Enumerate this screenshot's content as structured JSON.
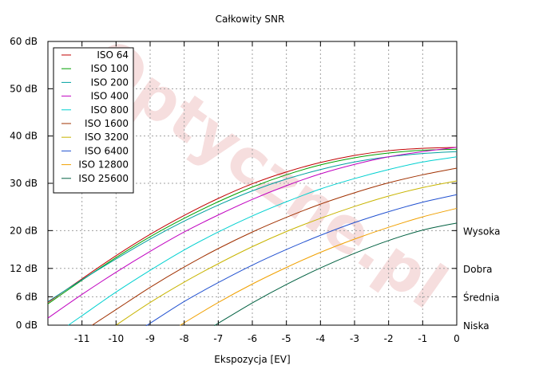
{
  "chart_data": {
    "type": "line",
    "title": "Całkowity SNR",
    "xlabel": "Ekspozycja [EV]",
    "ylabel": "",
    "xlim": [
      -12,
      0
    ],
    "ylim": [
      0,
      60
    ],
    "x_ticks": [
      -11,
      -10,
      -9,
      -8,
      -7,
      -6,
      -5,
      -4,
      -3,
      -2,
      -1,
      0
    ],
    "y_ticks": [
      {
        "value": 0,
        "label": "0 dB"
      },
      {
        "value": 6,
        "label": "6 dB"
      },
      {
        "value": 12,
        "label": "12 dB"
      },
      {
        "value": 20,
        "label": "20 dB"
      },
      {
        "value": 30,
        "label": "30 dB"
      },
      {
        "value": 40,
        "label": "40 dB"
      },
      {
        "value": 50,
        "label": "50 dB"
      },
      {
        "value": 60,
        "label": "60 dB"
      }
    ],
    "y2_ticks": [
      {
        "value": 20,
        "label": "Wysoka"
      },
      {
        "value": 12,
        "label": "Dobra"
      },
      {
        "value": 6,
        "label": "Średnia"
      },
      {
        "value": 0,
        "label": "Niska"
      }
    ],
    "grid": true,
    "legend_position": "top-left",
    "x": [
      -12,
      -11,
      -10,
      -9,
      -8,
      -7,
      -6,
      -5,
      -4,
      -3,
      -2,
      -1,
      0
    ],
    "series": [
      {
        "name": "ISO 64",
        "color": "#c00000",
        "values": [
          4.8,
          9.8,
          14.7,
          19.2,
          23.2,
          26.8,
          29.9,
          32.4,
          34.4,
          35.9,
          36.9,
          37.4,
          37.6
        ]
      },
      {
        "name": "ISO 100",
        "color": "#00a000",
        "values": [
          4.5,
          9.5,
          14.3,
          18.7,
          22.6,
          26.1,
          29.2,
          31.8,
          33.9,
          35.4,
          36.4,
          37.0,
          37.2
        ]
      },
      {
        "name": "ISO 200",
        "color": "#00a0a0",
        "values": [
          5.0,
          9.6,
          14.0,
          18.2,
          22.0,
          25.4,
          28.4,
          30.9,
          32.9,
          34.5,
          35.6,
          36.3,
          36.7
        ]
      },
      {
        "name": "ISO 400",
        "color": "#c000c0",
        "values": null,
        "values_pts": [
          [
            -12,
            1.5
          ],
          [
            -11,
            6.5
          ],
          [
            -10,
            11.2
          ],
          [
            -9,
            15.6
          ],
          [
            -8,
            19.7
          ],
          [
            -7,
            23.3
          ],
          [
            -6,
            26.6
          ],
          [
            -5,
            29.5
          ],
          [
            -4,
            32.0
          ],
          [
            -3,
            34.0
          ],
          [
            -2,
            35.6
          ],
          [
            -1,
            36.7
          ],
          [
            0,
            37.6
          ]
        ]
      },
      {
        "name": "ISO 800",
        "color": "#00d0d0",
        "values_pts": [
          [
            -11.4,
            0
          ],
          [
            -11,
            2.0
          ],
          [
            -10,
            7.0
          ],
          [
            -9,
            11.6
          ],
          [
            -8,
            15.9
          ],
          [
            -7,
            19.7
          ],
          [
            -6,
            23.1
          ],
          [
            -5,
            26.1
          ],
          [
            -4,
            28.8
          ],
          [
            -3,
            31.0
          ],
          [
            -2,
            32.9
          ],
          [
            -1,
            34.5
          ],
          [
            0,
            35.6
          ]
        ]
      },
      {
        "name": "ISO 1600",
        "color": "#a03000",
        "values_pts": [
          [
            -10.7,
            0
          ],
          [
            -10,
            3.3
          ],
          [
            -9,
            8.0
          ],
          [
            -8,
            12.3
          ],
          [
            -7,
            16.2
          ],
          [
            -6,
            19.7
          ],
          [
            -5,
            22.8
          ],
          [
            -4,
            25.6
          ],
          [
            -3,
            28.0
          ],
          [
            -2,
            30.1
          ],
          [
            -1,
            31.8
          ],
          [
            0,
            33.2
          ]
        ]
      },
      {
        "name": "ISO 3200",
        "color": "#c8b400",
        "values_pts": [
          [
            -10,
            0
          ],
          [
            -9,
            4.8
          ],
          [
            -8,
            9.1
          ],
          [
            -7,
            13.0
          ],
          [
            -6,
            16.6
          ],
          [
            -5,
            19.8
          ],
          [
            -4,
            22.6
          ],
          [
            -3,
            25.1
          ],
          [
            -2,
            27.3
          ],
          [
            -1,
            29.1
          ],
          [
            0,
            30.5
          ]
        ]
      },
      {
        "name": "ISO 6400",
        "color": "#2050d0",
        "values_pts": [
          [
            -9.1,
            0
          ],
          [
            -9,
            0.4
          ],
          [
            -8,
            5.0
          ],
          [
            -7,
            9.0
          ],
          [
            -6,
            12.7
          ],
          [
            -5,
            16.0
          ],
          [
            -4,
            19.0
          ],
          [
            -3,
            21.7
          ],
          [
            -2,
            24.0
          ],
          [
            -1,
            26.0
          ],
          [
            0,
            27.6
          ]
        ]
      },
      {
        "name": "ISO 12800",
        "color": "#f0a000",
        "values_pts": [
          [
            -8.1,
            0
          ],
          [
            -8,
            0.5
          ],
          [
            -7,
            4.8
          ],
          [
            -6,
            8.7
          ],
          [
            -5,
            12.2
          ],
          [
            -4,
            15.4
          ],
          [
            -3,
            18.2
          ],
          [
            -2,
            20.7
          ],
          [
            -1,
            22.9
          ],
          [
            0,
            24.7
          ]
        ]
      },
      {
        "name": "ISO 25600",
        "color": "#006040",
        "values_pts": [
          [
            -7.1,
            0
          ],
          [
            -7,
            0.4
          ],
          [
            -6,
            4.7
          ],
          [
            -5,
            8.6
          ],
          [
            -4,
            12.1
          ],
          [
            -3,
            15.2
          ],
          [
            -2,
            17.9
          ],
          [
            -1,
            20.1
          ],
          [
            0,
            21.6
          ]
        ]
      }
    ]
  },
  "watermark": "Optyczne.pl"
}
